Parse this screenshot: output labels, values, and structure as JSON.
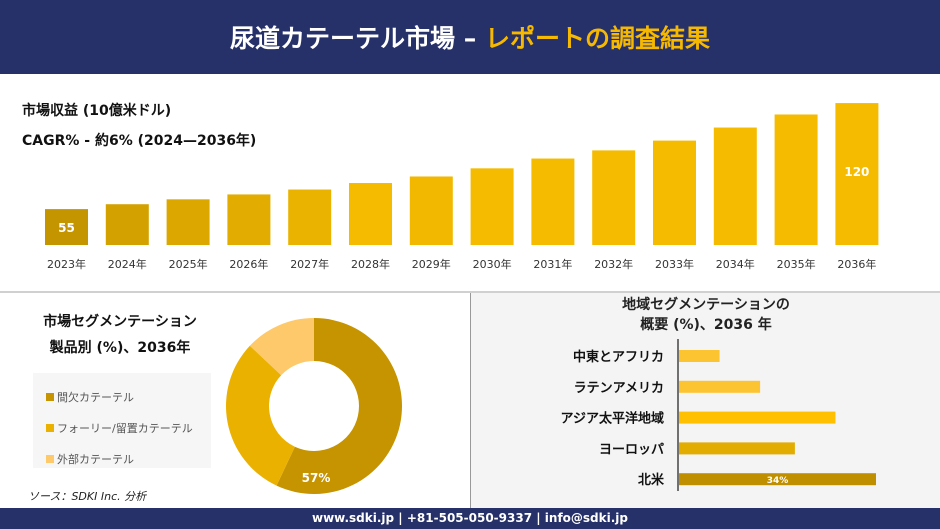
{
  "header": {
    "title_main": "尿道カテーテル市場 –",
    "title_accent": "レポートの調査結果"
  },
  "revenue": {
    "subtitle1": "市場収益 (10億米ドル)",
    "subtitle2": "CAGR% - 約6% (2024—2036年)"
  },
  "chart_data": [
    {
      "type": "bar",
      "title": "",
      "categories": [
        "2023年",
        "2024年",
        "2025年",
        "2026年",
        "2027年",
        "2028年",
        "2029年",
        "2030年",
        "2031年",
        "2032年",
        "2033年",
        "2034年",
        "2035年",
        "2036年"
      ],
      "values": [
        55,
        58,
        61,
        64,
        67,
        71,
        75,
        80,
        86,
        91,
        97,
        105,
        113,
        120
      ],
      "data_labels": {
        "0": "55",
        "13": "120"
      },
      "colors": [
        "#c59500",
        "#d4a200",
        "#dca800",
        "#e2ac00",
        "#eab300",
        "#f5bb00",
        "#f2b800",
        "#f5bb00",
        "#f5bb00",
        "#f5bb00",
        "#f5bb00",
        "#f5bb00",
        "#f5bb00",
        "#f5bb00"
      ]
    },
    {
      "type": "pie",
      "title": "市場セグメンテーション 製品別 (%)、2036年",
      "title_line1": "市場セグメンテーション",
      "title_line2": "製品別 (%)、2036年",
      "slices": [
        {
          "label": "間欠カテーテル",
          "value": 57,
          "color": "#c59400",
          "data_label": "57%"
        },
        {
          "label": "フォーリー/留置カテーテル",
          "value": 30,
          "color": "#ebb100"
        },
        {
          "label": "外部カテーテル",
          "value": 13,
          "color": "#fdc96a"
        }
      ]
    },
    {
      "type": "bar",
      "orientation": "horizontal",
      "title_line1": "地域セグメンテーションの",
      "title_line2": "概要 (%)、2036 年",
      "categories": [
        "中東とアフリカ",
        "ラテンアメリカ",
        "アジア太平洋地域",
        "ヨーロッパ",
        "北米"
      ],
      "values": [
        7,
        14,
        27,
        20,
        34
      ],
      "data_labels": {
        "4": "34%"
      },
      "colors": [
        "#fdc431",
        "#fdc431",
        "#fec000",
        "#e2ac00",
        "#c08f00"
      ]
    }
  ],
  "source": "ソース：SDKI Inc. 分析",
  "footer": "www.sdki.jp | +81-505-050-9337 | info@sdki.jp"
}
